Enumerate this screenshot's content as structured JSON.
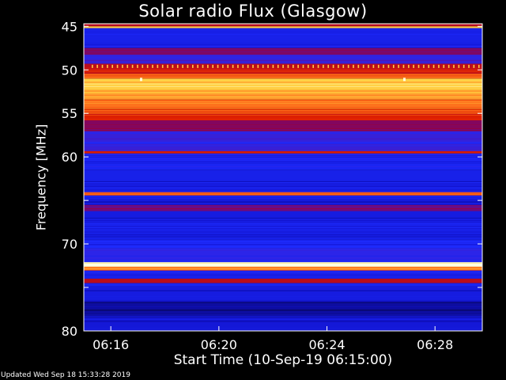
{
  "header": {
    "title": "Solar radio Flux (Glasgow)"
  },
  "footer": {
    "updated": "Updated Wed Sep 18 15:33:28 2019"
  },
  "chart_data": {
    "type": "heatmap",
    "title": "Solar radio Flux (Glasgow)",
    "xlabel": "Start Time (10-Sep-19 06:15:00)",
    "ylabel": "Frequency [MHz]",
    "x_unit": "time",
    "y_unit": "MHz",
    "xlim": [
      "06:15:00",
      "06:29:45"
    ],
    "ylim": [
      80,
      44.7
    ],
    "y_ticks": [
      45,
      50,
      55,
      60,
      65,
      70,
      75,
      80
    ],
    "y_tick_labels": [
      "45",
      "50",
      "55",
      "60",
      "",
      "70",
      "",
      "80"
    ],
    "x_ticks": [
      "06:16",
      "06:20",
      "06:24",
      "06:28"
    ],
    "x_tick_labels": [
      "06:16",
      "06:20",
      "06:24",
      "06:28"
    ],
    "colormap": [
      "#000000",
      "#1010c8",
      "#1e2cff",
      "#5a10a0",
      "#a00030",
      "#e02000",
      "#ff7a20",
      "#ffd040",
      "#ffffe0"
    ],
    "frequency_bands": [
      {
        "from": 44.7,
        "to": 45.0,
        "level": 0.55
      },
      {
        "from": 45.0,
        "to": 45.2,
        "level": 0.85
      },
      {
        "from": 45.2,
        "to": 47.5,
        "level": 0.2
      },
      {
        "from": 47.5,
        "to": 48.2,
        "level": 0.45
      },
      {
        "from": 48.2,
        "to": 49.3,
        "level": 0.3
      },
      {
        "from": 49.3,
        "to": 49.8,
        "level": 0.55
      },
      {
        "from": 49.8,
        "to": 50.4,
        "level": 0.6
      },
      {
        "from": 50.4,
        "to": 51.0,
        "level": 0.7
      },
      {
        "from": 51.0,
        "to": 52.2,
        "level": 0.88
      },
      {
        "from": 52.2,
        "to": 53.4,
        "level": 0.8
      },
      {
        "from": 53.4,
        "to": 54.5,
        "level": 0.74
      },
      {
        "from": 54.5,
        "to": 55.0,
        "level": 0.68
      },
      {
        "from": 55.0,
        "to": 55.8,
        "level": 0.62
      },
      {
        "from": 55.8,
        "to": 57.0,
        "level": 0.45
      },
      {
        "from": 57.0,
        "to": 59.3,
        "level": 0.3
      },
      {
        "from": 59.3,
        "to": 59.6,
        "level": 0.62
      },
      {
        "from": 59.6,
        "to": 61.5,
        "level": 0.22
      },
      {
        "from": 61.5,
        "to": 62.8,
        "level": 0.2
      },
      {
        "from": 62.8,
        "to": 64.0,
        "level": 0.18
      },
      {
        "from": 64.0,
        "to": 64.4,
        "level": 0.7
      },
      {
        "from": 64.4,
        "to": 65.5,
        "level": 0.18
      },
      {
        "from": 65.5,
        "to": 66.2,
        "level": 0.42
      },
      {
        "from": 66.2,
        "to": 69.5,
        "level": 0.18
      },
      {
        "from": 69.5,
        "to": 70.5,
        "level": 0.24
      },
      {
        "from": 70.5,
        "to": 72.1,
        "level": 0.28
      },
      {
        "from": 72.1,
        "to": 72.6,
        "level": 1.0
      },
      {
        "from": 72.6,
        "to": 73.0,
        "level": 0.75
      },
      {
        "from": 73.0,
        "to": 74.0,
        "level": 0.2
      },
      {
        "from": 74.0,
        "to": 74.5,
        "level": 0.55
      },
      {
        "from": 74.5,
        "to": 76.5,
        "level": 0.18
      },
      {
        "from": 76.5,
        "to": 78.0,
        "level": 0.1
      },
      {
        "from": 78.0,
        "to": 80.0,
        "level": 0.16
      }
    ]
  }
}
